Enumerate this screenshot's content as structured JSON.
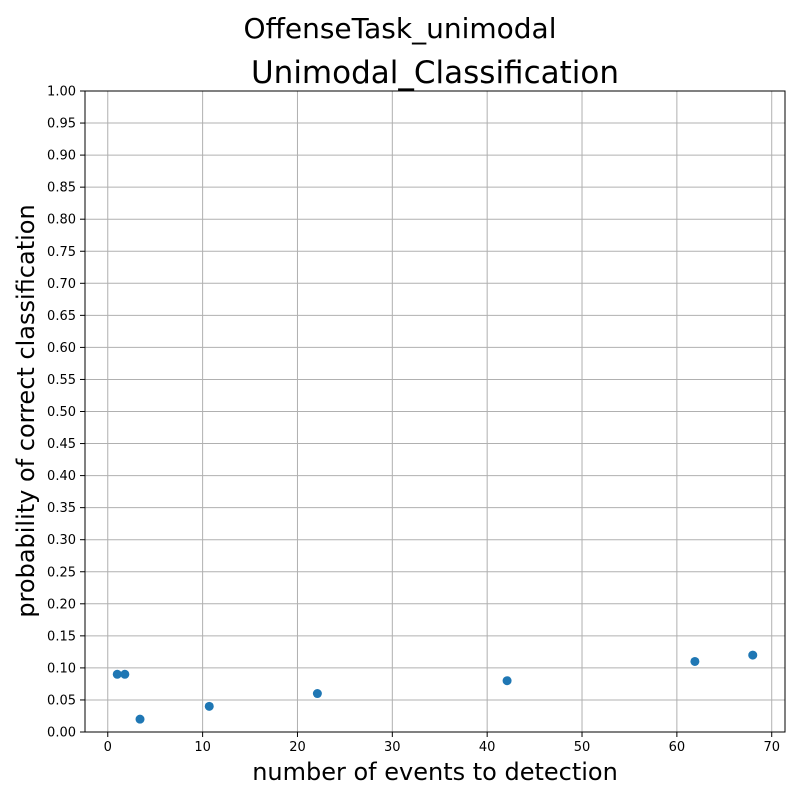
{
  "chart_data": {
    "type": "scatter",
    "suptitle": "OffenseTask_unimodal",
    "title": "Unimodal_Classification",
    "xlabel": "number of events to detection",
    "ylabel": "probability of correct classification",
    "xlim": [
      -2.4,
      71.4
    ],
    "ylim": [
      0,
      1
    ],
    "xticks": [
      "0",
      "10",
      "20",
      "30",
      "40",
      "50",
      "60",
      "70"
    ],
    "yticks": [
      "0.00",
      "0.05",
      "0.10",
      "0.15",
      "0.20",
      "0.25",
      "0.30",
      "0.35",
      "0.40",
      "0.45",
      "0.50",
      "0.55",
      "0.60",
      "0.65",
      "0.70",
      "0.75",
      "0.80",
      "0.85",
      "0.90",
      "0.95",
      "1.00"
    ],
    "grid": true,
    "marker_color": "#1f77b4",
    "points": [
      {
        "x": 1.0,
        "y": 0.09
      },
      {
        "x": 1.8,
        "y": 0.09
      },
      {
        "x": 3.4,
        "y": 0.02
      },
      {
        "x": 10.7,
        "y": 0.04
      },
      {
        "x": 22.1,
        "y": 0.06
      },
      {
        "x": 42.1,
        "y": 0.08
      },
      {
        "x": 61.9,
        "y": 0.11
      },
      {
        "x": 68.0,
        "y": 0.12
      }
    ]
  }
}
